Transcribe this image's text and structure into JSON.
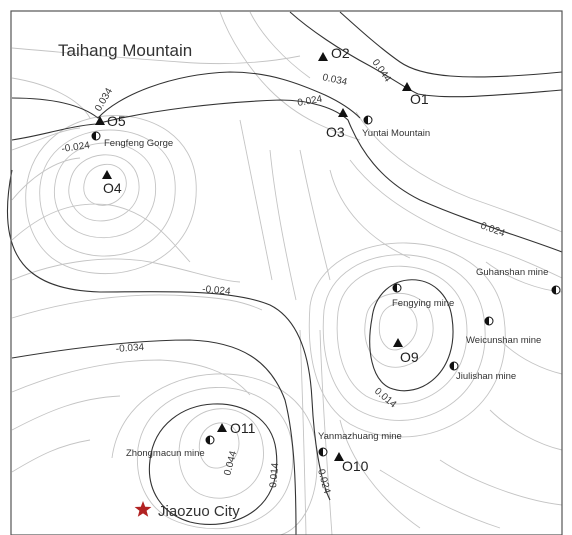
{
  "map": {
    "region_label": "Taihang Mountain",
    "city": {
      "name": "Jiaozuo City",
      "marker_icon": "star-icon",
      "color": "#b22222"
    },
    "observation_points": [
      {
        "id": "o2",
        "label": "O2",
        "icon": "triangle-icon"
      },
      {
        "id": "o1",
        "label": "O1",
        "icon": "triangle-icon"
      },
      {
        "id": "o5",
        "label": "O5",
        "icon": "triangle-icon"
      },
      {
        "id": "o3",
        "label": "O3",
        "icon": "triangle-icon"
      },
      {
        "id": "o4",
        "label": "O4",
        "icon": "triangle-icon"
      },
      {
        "id": "o9",
        "label": "O9",
        "icon": "triangle-icon"
      },
      {
        "id": "o11",
        "label": "O11",
        "icon": "triangle-icon"
      },
      {
        "id": "o10",
        "label": "O10",
        "icon": "triangle-icon"
      }
    ],
    "mines": [
      {
        "id": "fengfeng",
        "label": "Fengfeng Gorge",
        "icon": "half-circle-icon"
      },
      {
        "id": "yuntai",
        "label": "Yuntai Mountain",
        "icon": "half-circle-icon"
      },
      {
        "id": "guhanshan",
        "label": "Guhanshan mine",
        "icon": "half-circle-icon"
      },
      {
        "id": "fengying",
        "label": "Fengying mine",
        "icon": "half-circle-icon"
      },
      {
        "id": "weicunshan",
        "label": "Weicunshan mine",
        "icon": "half-circle-icon"
      },
      {
        "id": "jiulishan",
        "label": "Jiulishan mine",
        "icon": "half-circle-icon"
      },
      {
        "id": "yanmazhuang",
        "label": "Yanmazhuang mine",
        "icon": "half-circle-icon"
      },
      {
        "id": "zhongmacun",
        "label": "Zhongmacun mine",
        "icon": "half-circle-icon"
      }
    ],
    "contour_labels": [
      "0.034",
      "0.044",
      "0.034",
      "0.024",
      "-0.024",
      "0.024",
      "-0.024",
      "-0.034",
      "0.014",
      "0.044",
      "0.014",
      "0.024"
    ]
  }
}
